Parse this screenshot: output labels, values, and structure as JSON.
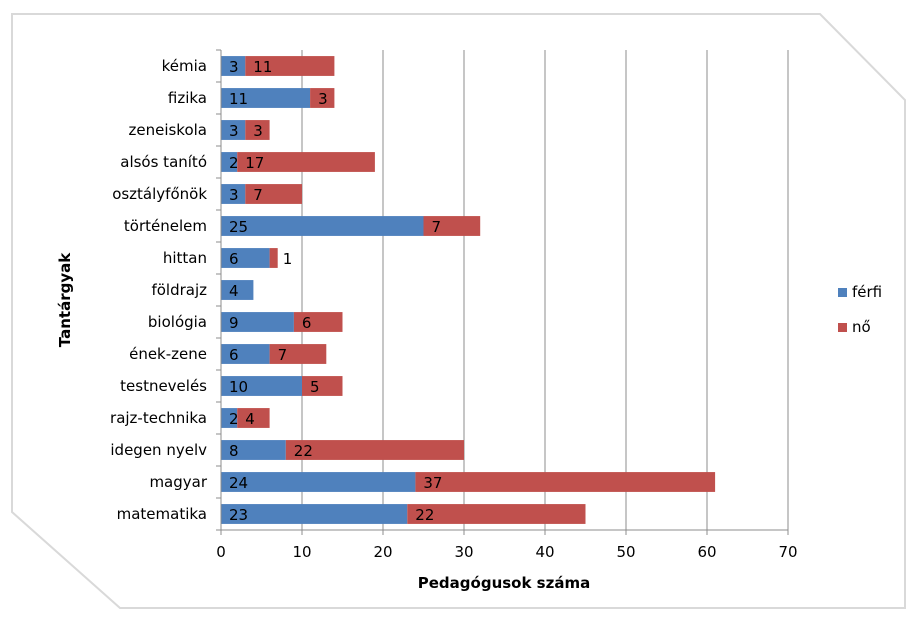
{
  "chart_data": {
    "type": "bar",
    "orientation": "horizontal",
    "stacked": true,
    "title": "",
    "xlabel": "Pedagógusok száma",
    "ylabel": "Tantárgyak",
    "xlim": [
      0,
      70
    ],
    "xticks": [
      0,
      10,
      20,
      30,
      40,
      50,
      60,
      70
    ],
    "grid": "vertical",
    "legend_position": "right",
    "categories": [
      "kémia",
      "fizika",
      "zeneiskola",
      "alsós tanító",
      "osztályfőnök",
      "történelem",
      "hittan",
      "földrajz",
      "biológia",
      "ének-zene",
      "testnevelés",
      "rajz-technika",
      "idegen nyelv",
      "magyar",
      "matematika"
    ],
    "series": [
      {
        "name": "férfi",
        "color": "#4F81BD",
        "values": [
          3,
          11,
          3,
          2,
          3,
          25,
          6,
          4,
          9,
          6,
          10,
          2,
          8,
          24,
          23
        ]
      },
      {
        "name": "nő",
        "color": "#C0504D",
        "values": [
          11,
          3,
          3,
          17,
          7,
          7,
          1,
          0,
          6,
          7,
          5,
          4,
          22,
          37,
          22
        ]
      }
    ]
  }
}
